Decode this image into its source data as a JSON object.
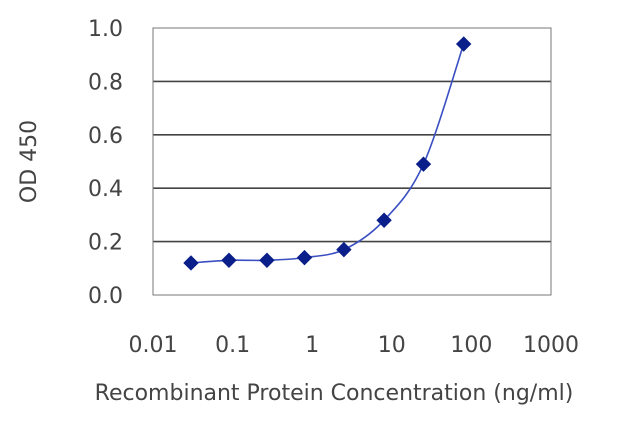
{
  "chart_data": {
    "type": "line",
    "title": "",
    "xlabel": "Recombinant Protein Concentration (ng/ml)",
    "ylabel": "OD 450",
    "xscale": "log",
    "xlim": [
      0.01,
      1000
    ],
    "ylim": [
      0.0,
      1.0
    ],
    "xticks": [
      "0.01",
      "0.1",
      "1",
      "10",
      "100",
      "1000"
    ],
    "yticks": [
      "0.0",
      "0.2",
      "0.4",
      "0.6",
      "0.8",
      "1.0"
    ],
    "grid": "horizontal",
    "legend": "none",
    "series": [
      {
        "color": "#0b1f8a",
        "marker": "diamond",
        "x": [
          0.03,
          0.09,
          0.27,
          0.8,
          2.5,
          8,
          25,
          80
        ],
        "y": [
          0.12,
          0.13,
          0.13,
          0.14,
          0.17,
          0.28,
          0.49,
          0.94
        ]
      }
    ],
    "colors": {
      "plot_background": "#ffffff",
      "grid": "#444444",
      "axes_border": "#777777",
      "text": "#444444"
    }
  }
}
